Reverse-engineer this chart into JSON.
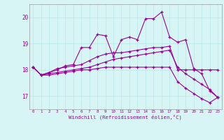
{
  "xlabel": "Windchill (Refroidissement éolien,°C)",
  "hours": [
    0,
    1,
    2,
    3,
    4,
    5,
    6,
    7,
    8,
    9,
    10,
    11,
    12,
    13,
    14,
    15,
    16,
    17,
    18,
    19,
    20,
    21,
    22,
    23
  ],
  "series1": [
    18.1,
    17.8,
    17.9,
    18.0,
    18.15,
    18.2,
    18.85,
    18.85,
    19.35,
    19.3,
    18.5,
    19.15,
    19.25,
    19.15,
    19.95,
    19.95,
    20.2,
    19.25,
    19.05,
    19.15,
    18.05,
    17.85,
    17.2,
    16.95
  ],
  "series2": [
    18.1,
    17.8,
    17.9,
    18.05,
    18.1,
    18.15,
    18.2,
    18.35,
    18.5,
    18.6,
    18.65,
    18.65,
    18.7,
    18.75,
    18.8,
    18.85,
    18.85,
    18.9,
    18.0,
    18.0,
    18.0,
    18.0,
    18.0,
    18.0
  ],
  "series3": [
    18.1,
    17.8,
    17.85,
    17.9,
    17.95,
    18.0,
    18.05,
    18.1,
    18.2,
    18.3,
    18.4,
    18.45,
    18.5,
    18.55,
    18.6,
    18.65,
    18.7,
    18.75,
    18.1,
    17.85,
    17.65,
    17.45,
    17.25,
    16.95
  ],
  "series4": [
    18.1,
    17.8,
    17.8,
    17.85,
    17.9,
    17.95,
    18.0,
    18.0,
    18.05,
    18.1,
    18.1,
    18.1,
    18.1,
    18.1,
    18.1,
    18.1,
    18.1,
    18.1,
    17.55,
    17.3,
    17.1,
    16.9,
    16.75,
    16.95
  ],
  "line_color": "#990099",
  "bg_color": "#d8f5f5",
  "grid_color": "#b8e8e8",
  "ylim": [
    16.5,
    20.5
  ],
  "yticks": [
    17,
    18,
    19,
    20
  ],
  "xlim": [
    -0.5,
    23.5
  ]
}
